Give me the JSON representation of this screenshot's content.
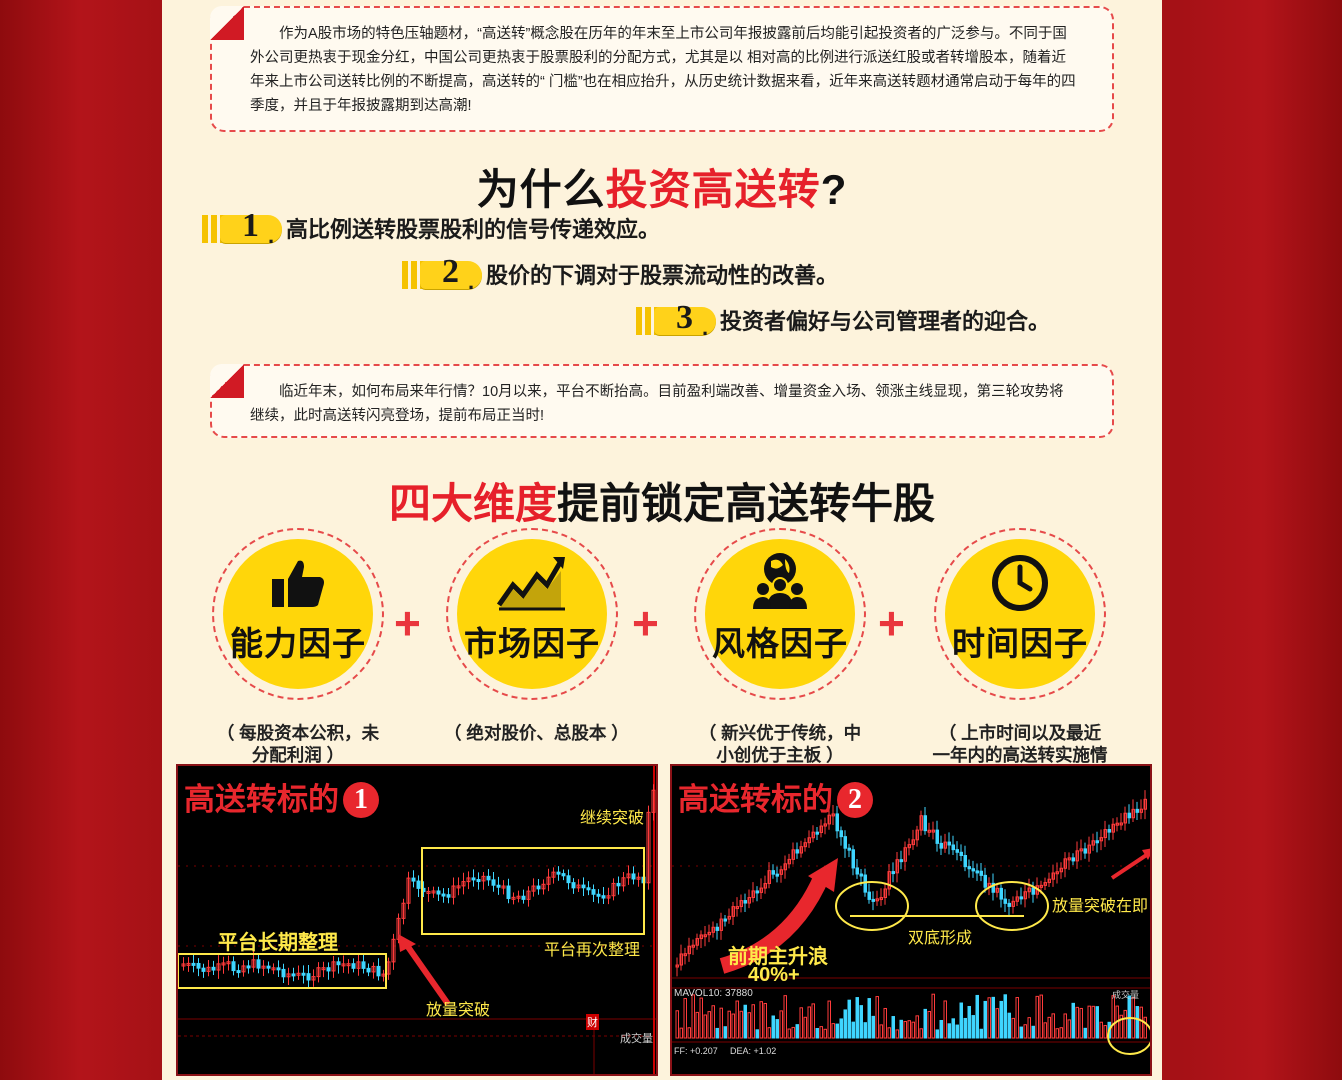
{
  "intro": {
    "text": "作为A股市场的特色压轴题材，“高送转”概念股在历年的年末至上市公司年报披露前后均能引起投资者的广泛参与。不同于国外公司更热衷于现金分红，中国公司更热衷于股票股利的分配方式，尤其是以 相对高的比例进行派送红股或者转增股本，随着近年来上市公司送转比例的不断提高，高送转的“ 门槛”也在相应抬升，从历史统计数据来看，近年来高送转题材通常启动于每年的四季度，并且于年报披露期到达高潮!"
  },
  "why": {
    "title_prefix": "为什么",
    "title_highlight": "投资高送转",
    "title_suffix": "?",
    "reasons": [
      {
        "num": "1",
        "text": "高比例送转股票股利的信号传递效应。"
      },
      {
        "num": "2",
        "text": "股价的下调对于股票流动性的改善。"
      },
      {
        "num": "3",
        "text": "投资者偏好与公司管理者的迎合。"
      }
    ]
  },
  "outlook": {
    "text": "临近年末，如何布局来年行情？10月以来，平台不断抬高。目前盈利端改善、增量资金入场、领涨主线显现，第三轮攻势将继续，此时高送转闪亮登场，提前布局正当时!"
  },
  "dimensions": {
    "title_highlight": "四大维度",
    "title_rest": "提前锁定高送转牛股",
    "plus": "+",
    "factors": [
      {
        "name": "能力因子",
        "icon": "thumbs-up-icon",
        "desc": "（ 每股资本公积，未分配利润 ）"
      },
      {
        "name": "市场因子",
        "icon": "chart-trend-icon",
        "desc": "（ 绝对股价、总股本 ）"
      },
      {
        "name": "风格因子",
        "icon": "globe-people-icon",
        "desc": "（ 新兴优于传统，中小创优于主板 ）"
      },
      {
        "name": "时间因子",
        "icon": "clock-icon",
        "desc": "（ 上市时间以及最近一年内的高送转实施情况 ）"
      }
    ]
  },
  "charts": [
    {
      "title": "高送转标的",
      "num": "1",
      "annotations": {
        "a": "继续突破",
        "b": "平台长期整理",
        "c": "平台再次整理",
        "d": "放量突破",
        "e": "成交量",
        "f": "财"
      }
    },
    {
      "title": "高送转标的",
      "num": "2",
      "annotations": {
        "a": "放量突破在即",
        "b": "双底形成",
        "c": "前期主升浪",
        "d": "40%+",
        "e": "MAVOL10: 37880",
        "f": "成交量",
        "g": "FF: +0.207",
        "h": "DEA: +1.02"
      }
    }
  ],
  "colors": {
    "accent": "#e6202a",
    "yellow": "#ffd60a",
    "page_bg": "#fdf3dc",
    "frame_red": "#a51116"
  }
}
